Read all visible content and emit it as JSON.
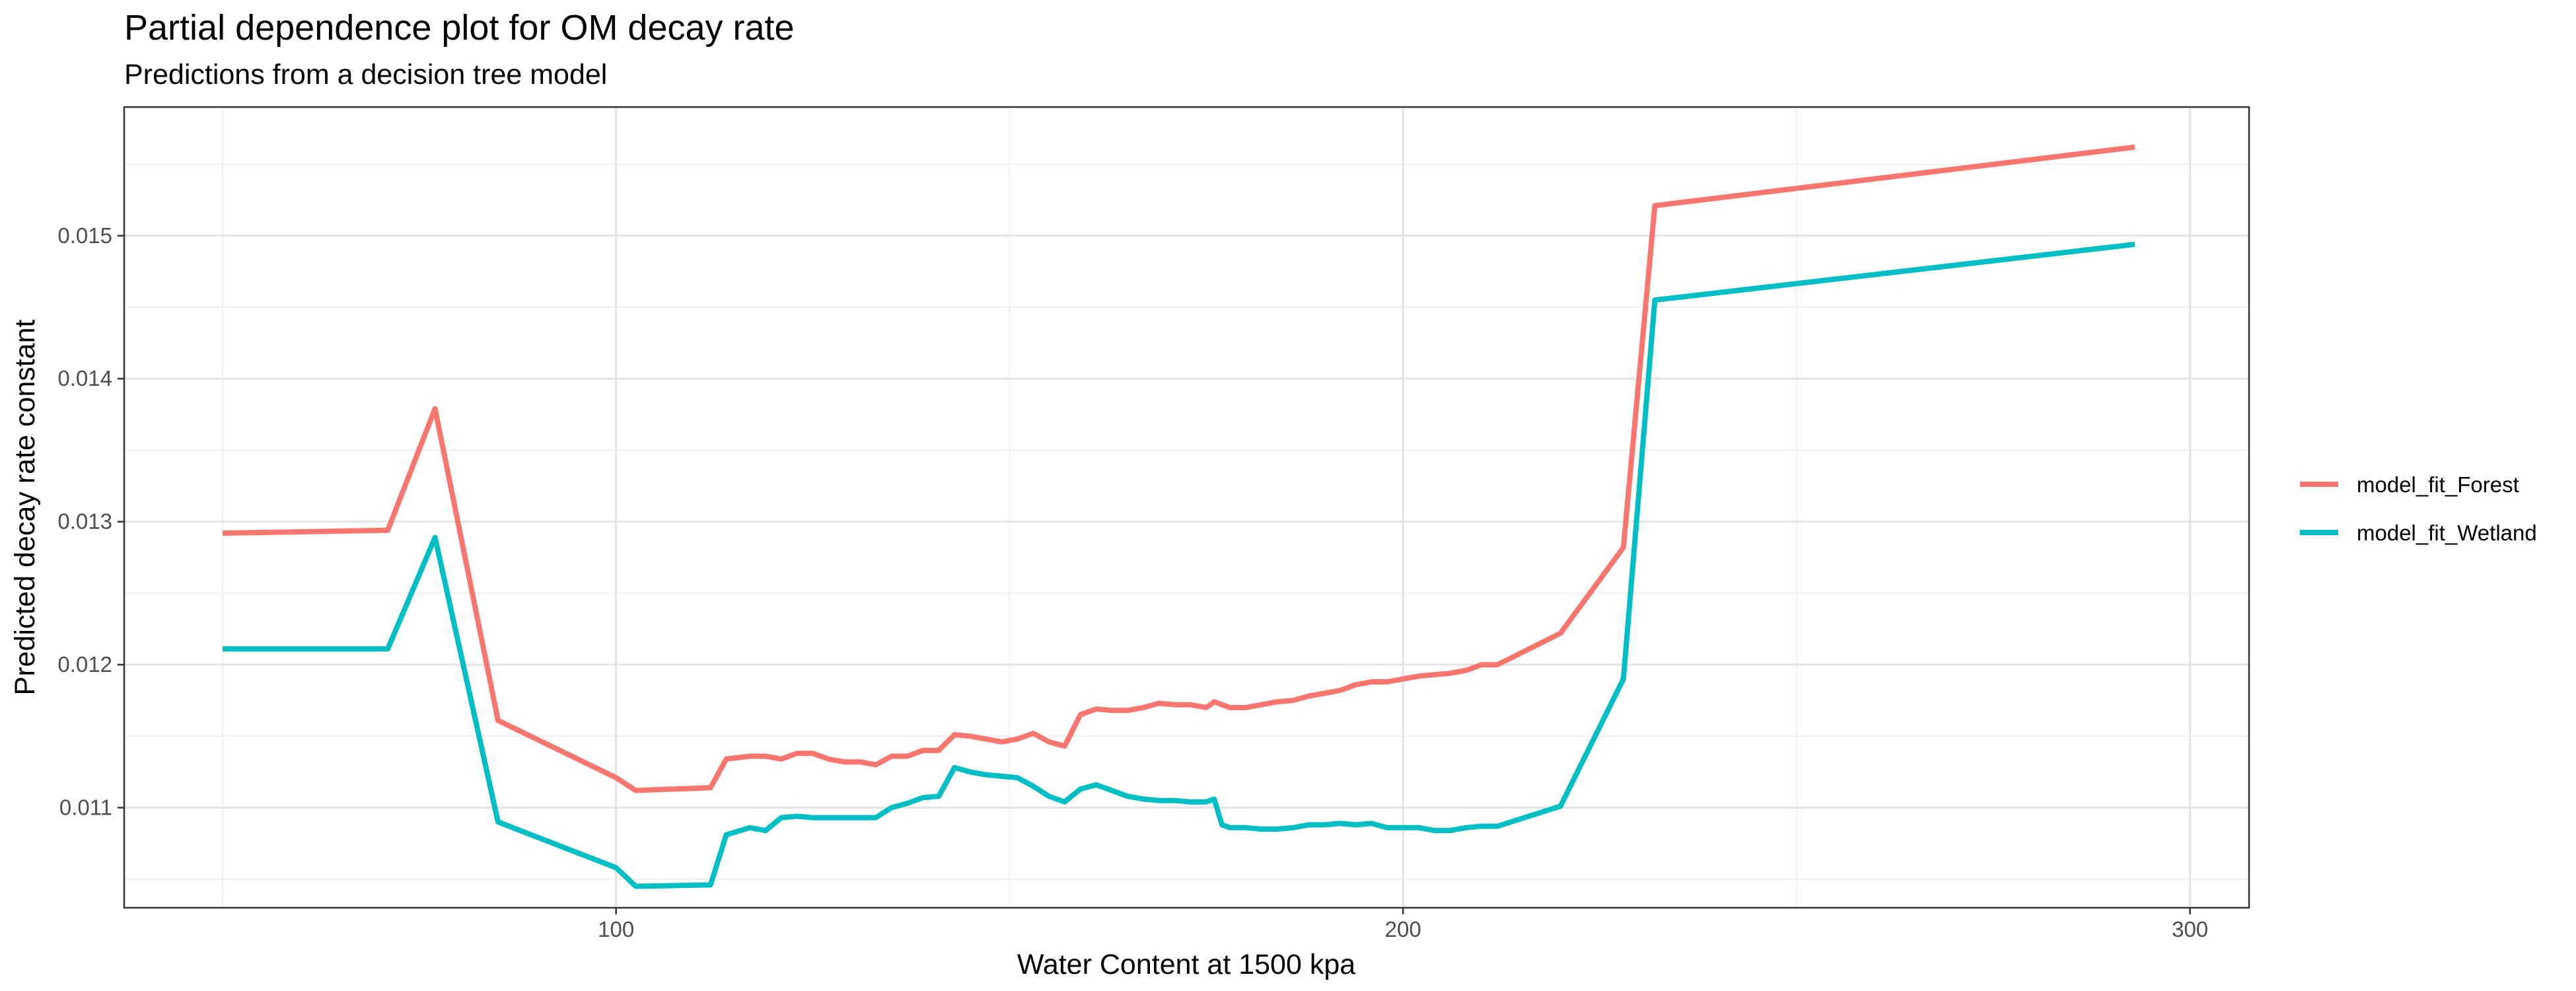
{
  "chart_data": {
    "type": "line",
    "title": "Partial dependence plot for OM decay rate",
    "subtitle": "Predictions from a decision tree model",
    "xlabel": "Water Content at 1500 kpa",
    "ylabel": "Predicted decay rate constant",
    "xlim": [
      37.5,
      307.5
    ],
    "ylim": [
      0.0103,
      0.0159
    ],
    "x_ticks": [
      100,
      200,
      300
    ],
    "y_ticks": [
      0.011,
      0.012,
      0.013,
      0.014,
      0.015
    ],
    "x_tick_labels": [
      "100",
      "200",
      "300"
    ],
    "y_tick_labels": [
      "0.011",
      "0.012",
      "0.013",
      "0.014",
      "0.015"
    ],
    "grid": true,
    "legend_position": "right",
    "series": [
      {
        "name": "model_fit_Forest",
        "color": "#f8766d",
        "x": [
          50,
          71,
          77,
          85,
          100,
          102.5,
          112,
          114,
          117,
          119,
          121,
          123,
          125,
          127,
          129,
          131,
          133,
          135,
          137,
          139,
          141,
          143,
          145,
          147,
          149,
          151,
          153,
          155,
          157,
          159,
          161,
          163,
          165,
          167,
          169,
          171,
          173,
          175,
          176,
          178,
          180,
          182,
          184,
          186,
          188,
          190,
          192,
          194,
          196,
          198,
          200,
          202,
          204,
          206,
          208,
          210,
          212,
          220,
          228,
          232,
          293
        ],
        "y": [
          0.01292,
          0.01294,
          0.01379,
          0.01161,
          0.01121,
          0.01112,
          0.01114,
          0.01134,
          0.01136,
          0.01136,
          0.01134,
          0.01138,
          0.01138,
          0.01134,
          0.01132,
          0.01132,
          0.0113,
          0.01136,
          0.01136,
          0.0114,
          0.0114,
          0.01151,
          0.0115,
          0.01148,
          0.01146,
          0.01148,
          0.01152,
          0.01146,
          0.01143,
          0.01165,
          0.01169,
          0.01168,
          0.01168,
          0.0117,
          0.01173,
          0.01172,
          0.01172,
          0.0117,
          0.01174,
          0.0117,
          0.0117,
          0.01172,
          0.01174,
          0.01175,
          0.01178,
          0.0118,
          0.01182,
          0.01186,
          0.01188,
          0.01188,
          0.0119,
          0.01192,
          0.01193,
          0.01194,
          0.01196,
          0.012,
          0.012,
          0.01222,
          0.01282,
          0.01521,
          0.01562
        ]
      },
      {
        "name": "model_fit_Wetland",
        "color": "#00bfc4",
        "x": [
          50,
          71,
          77,
          85,
          100,
          102.5,
          112,
          114,
          117,
          119,
          121,
          123,
          125,
          127,
          129,
          131,
          133,
          135,
          137,
          139,
          141,
          143,
          145,
          147,
          149,
          151,
          153,
          155,
          157,
          159,
          161,
          163,
          165,
          167,
          169,
          171,
          173,
          175,
          176,
          177,
          178,
          180,
          182,
          184,
          186,
          188,
          190,
          192,
          194,
          196,
          198,
          200,
          202,
          204,
          206,
          208,
          210,
          212,
          220,
          228,
          232,
          293
        ],
        "y": [
          0.01211,
          0.01211,
          0.01289,
          0.0109,
          0.01058,
          0.01045,
          0.01046,
          0.01081,
          0.01086,
          0.01084,
          0.01093,
          0.01094,
          0.01093,
          0.01093,
          0.01093,
          0.01093,
          0.01093,
          0.011,
          0.01103,
          0.01107,
          0.01108,
          0.01128,
          0.01125,
          0.01123,
          0.01122,
          0.01121,
          0.01115,
          0.01108,
          0.01104,
          0.01113,
          0.01116,
          0.01112,
          0.01108,
          0.01106,
          0.01105,
          0.01105,
          0.01104,
          0.01104,
          0.01106,
          0.01088,
          0.01086,
          0.01086,
          0.01085,
          0.01085,
          0.01086,
          0.01088,
          0.01088,
          0.01089,
          0.01088,
          0.01089,
          0.01086,
          0.01086,
          0.01086,
          0.01084,
          0.01084,
          0.01086,
          0.01087,
          0.01087,
          0.01101,
          0.0119,
          0.01455,
          0.01494
        ]
      }
    ]
  }
}
